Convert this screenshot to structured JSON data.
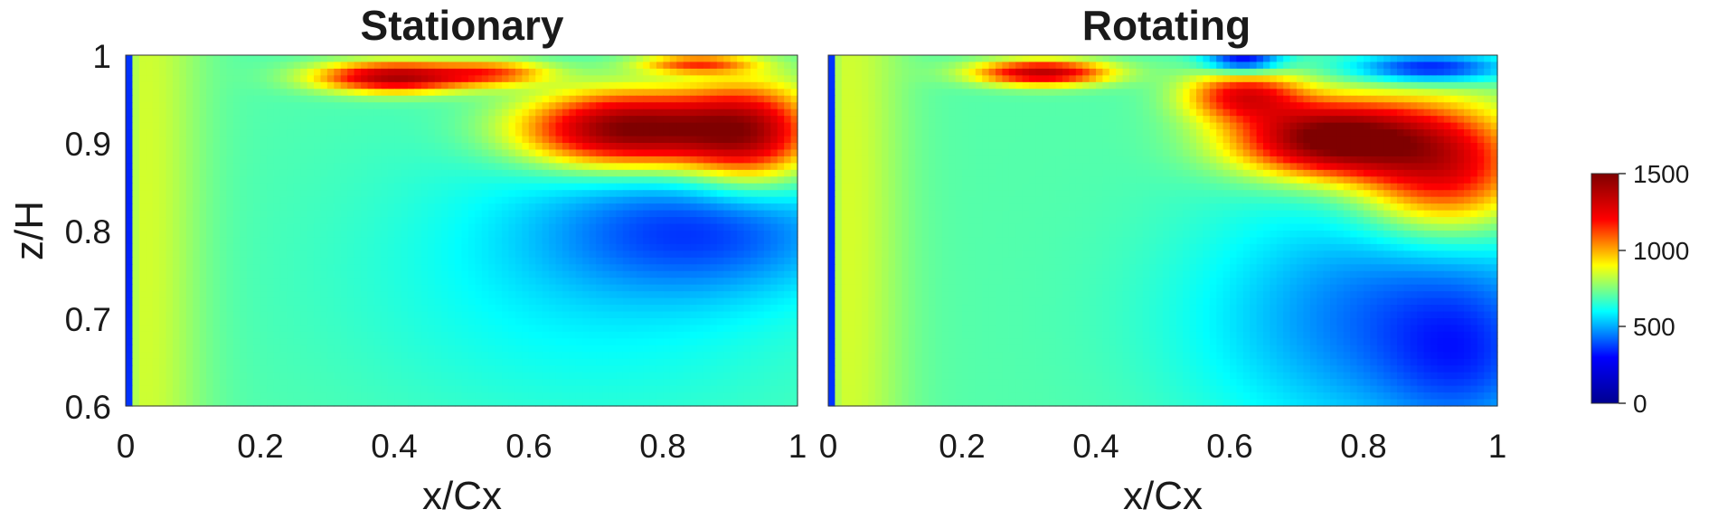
{
  "chart_data": [
    {
      "type": "heatmap",
      "title": "Stationary",
      "xlabel": "x/Cx",
      "ylabel": "z/H",
      "xlim": [
        0,
        1
      ],
      "ylim": [
        0.6,
        1
      ],
      "x_ticks": [
        "0",
        "0.2",
        "0.4",
        "0.6",
        "0.8",
        "1"
      ],
      "y_ticks": [
        "0.6",
        "0.7",
        "0.8",
        "0.9",
        "1"
      ],
      "background_value": 700,
      "features": [
        {
          "x": 0.75,
          "z": 0.915,
          "sx": 0.11,
          "sz": 0.03,
          "amp": 850
        },
        {
          "x": 0.93,
          "z": 0.91,
          "sx": 0.07,
          "sz": 0.04,
          "amp": 600
        },
        {
          "x": 0.4,
          "z": 0.975,
          "sx": 0.08,
          "sz": 0.012,
          "amp": 700
        },
        {
          "x": 0.55,
          "z": 0.98,
          "sx": 0.06,
          "sz": 0.01,
          "amp": 350
        },
        {
          "x": 0.85,
          "z": 0.99,
          "sx": 0.06,
          "sz": 0.008,
          "amp": 400
        },
        {
          "x": 0.86,
          "z": 0.8,
          "sx": 0.16,
          "sz": 0.05,
          "amp": -250
        },
        {
          "x": 0.7,
          "z": 0.75,
          "sx": 0.25,
          "sz": 0.12,
          "amp": -120
        },
        {
          "x": 0.03,
          "z": 0.8,
          "sx": 0.06,
          "sz": 0.6,
          "amp": 150
        },
        {
          "x": 0.0,
          "z": 0.8,
          "sx": 0.006,
          "sz": 0.6,
          "amp": -700
        }
      ]
    },
    {
      "type": "heatmap",
      "title": "Rotating",
      "xlabel": "x/Cx",
      "ylabel": "",
      "xlim": [
        0,
        1
      ],
      "ylim": [
        0.6,
        1
      ],
      "x_ticks": [
        "0",
        "0.2",
        "0.4",
        "0.6",
        "0.8",
        "1"
      ],
      "y_ticks": [],
      "background_value": 700,
      "features": [
        {
          "x": 0.75,
          "z": 0.905,
          "sx": 0.1,
          "sz": 0.03,
          "amp": 850
        },
        {
          "x": 0.92,
          "z": 0.87,
          "sx": 0.09,
          "sz": 0.05,
          "amp": 600
        },
        {
          "x": 0.62,
          "z": 0.955,
          "sx": 0.06,
          "sz": 0.02,
          "amp": 500
        },
        {
          "x": 0.32,
          "z": 0.98,
          "sx": 0.07,
          "sz": 0.01,
          "amp": 650
        },
        {
          "x": 0.62,
          "z": 0.995,
          "sx": 0.04,
          "sz": 0.012,
          "amp": -450
        },
        {
          "x": 0.9,
          "z": 0.985,
          "sx": 0.08,
          "sz": 0.012,
          "amp": -400
        },
        {
          "x": 0.85,
          "z": 0.7,
          "sx": 0.2,
          "sz": 0.1,
          "amp": -280
        },
        {
          "x": 0.95,
          "z": 0.65,
          "sx": 0.08,
          "sz": 0.06,
          "amp": -150
        },
        {
          "x": 0.03,
          "z": 0.8,
          "sx": 0.06,
          "sz": 0.6,
          "amp": 150
        },
        {
          "x": 0.0,
          "z": 0.8,
          "sx": 0.006,
          "sz": 0.6,
          "amp": -700
        }
      ]
    }
  ],
  "colorbar": {
    "min": 0,
    "max": 1500,
    "ticks": [
      "0",
      "500",
      "1000",
      "1500"
    ],
    "colormap": [
      "#00008f",
      "#0000ff",
      "#00ffff",
      "#ffff00",
      "#ff0000",
      "#7f0000"
    ]
  }
}
